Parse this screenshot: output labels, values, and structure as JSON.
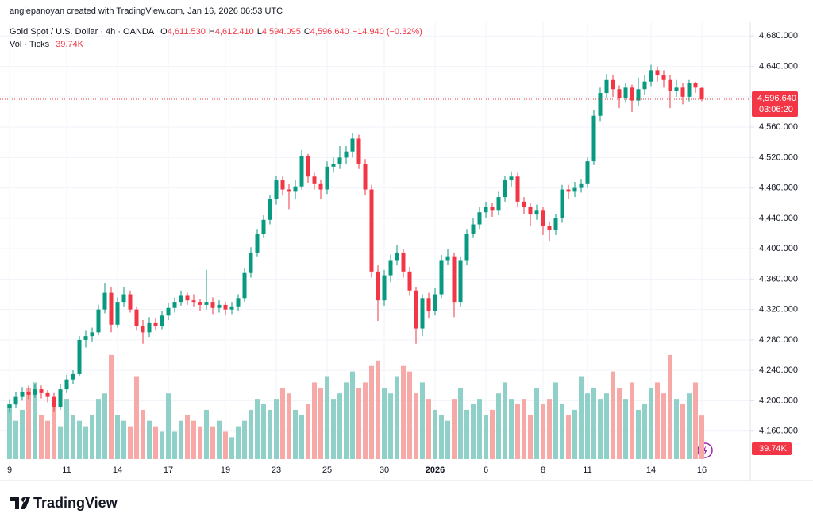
{
  "chart_data": {
    "type": "candlestick",
    "header": "angiepanoyan created with TradingView.com, Jan 16, 2026 06:53 UTC",
    "title": "Gold Spot / U.S. Dollar · 4h · OANDA",
    "ohlc_legend": [
      {
        "key": "O",
        "value": "4,611.530"
      },
      {
        "key": "H",
        "value": "4,612.410"
      },
      {
        "key": "L",
        "value": "4,594.095"
      },
      {
        "key": "C",
        "value": "4,596.640"
      }
    ],
    "change": "−14.940 (−0.32%)",
    "categories": [
      "9",
      null,
      null,
      null,
      null,
      null,
      null,
      null,
      null,
      "11",
      null,
      null,
      null,
      null,
      null,
      null,
      null,
      "14",
      null,
      null,
      null,
      null,
      null,
      null,
      null,
      "17",
      null,
      null,
      null,
      null,
      null,
      null,
      null,
      null,
      "19",
      null,
      null,
      null,
      null,
      null,
      null,
      null,
      "23",
      null,
      null,
      null,
      null,
      null,
      null,
      null,
      "25",
      null,
      null,
      null,
      null,
      null,
      null,
      null,
      null,
      "30",
      null,
      null,
      null,
      null,
      null,
      null,
      null,
      "2026",
      null,
      null,
      null,
      null,
      null,
      null,
      null,
      "6",
      null,
      null,
      null,
      null,
      null,
      null,
      null,
      null,
      "8",
      null,
      null,
      null,
      null,
      null,
      null,
      "11",
      null,
      null,
      null,
      null,
      null,
      null,
      null,
      null,
      null,
      "14",
      null,
      null,
      null,
      null,
      null,
      null,
      null,
      "16"
    ],
    "open": [
      4190,
      4195,
      4205,
      4212,
      4208,
      4215,
      4210,
      4205,
      4192,
      4215,
      4228,
      4235,
      4280,
      4285,
      4290,
      4320,
      4342,
      4300,
      4330,
      4340,
      4320,
      4298,
      4290,
      4302,
      4298,
      4312,
      4322,
      4330,
      4338,
      4332,
      4330,
      4326,
      4330,
      4322,
      4326,
      4320,
      4324,
      4335,
      4368,
      4395,
      4420,
      4438,
      4465,
      4490,
      4478,
      4475,
      4482,
      4522,
      4495,
      4485,
      4478,
      4508,
      4512,
      4520,
      4528,
      4545,
      4512,
      4478,
      4370,
      4332,
      4365,
      4385,
      4395,
      4370,
      4345,
      4295,
      4335,
      4318,
      4340,
      4385,
      4390,
      4330,
      4385,
      4420,
      4432,
      4448,
      4455,
      4450,
      4468,
      4490,
      4495,
      4462,
      4455,
      4445,
      4450,
      4430,
      4425,
      4440,
      4478,
      4475,
      4480,
      4485,
      4515,
      4575,
      4605,
      4622,
      4610,
      4598,
      4612,
      4595,
      4610,
      4620,
      4635,
      4628,
      4622,
      4608,
      4612,
      4600,
      4618,
      4611.53
    ],
    "high": [
      4202,
      4212,
      4218,
      4220,
      4222,
      4220,
      4214,
      4210,
      4222,
      4234,
      4240,
      4285,
      4292,
      4296,
      4326,
      4355,
      4350,
      4336,
      4350,
      4345,
      4324,
      4306,
      4310,
      4308,
      4318,
      4328,
      4336,
      4345,
      4342,
      4340,
      4334,
      4372,
      4336,
      4332,
      4330,
      4330,
      4340,
      4374,
      4402,
      4426,
      4444,
      4470,
      4496,
      4495,
      4485,
      4490,
      4530,
      4525,
      4500,
      4490,
      4515,
      4520,
      4535,
      4535,
      4552,
      4550,
      4518,
      4484,
      4378,
      4372,
      4392,
      4405,
      4400,
      4376,
      4350,
      4340,
      4342,
      4348,
      4392,
      4400,
      4395,
      4390,
      4426,
      4440,
      4455,
      4462,
      4460,
      4475,
      4496,
      4502,
      4500,
      4468,
      4460,
      4458,
      4455,
      4436,
      4446,
      4484,
      4484,
      4488,
      4492,
      4520,
      4582,
      4612,
      4630,
      4628,
      4615,
      4618,
      4616,
      4625,
      4628,
      4642,
      4640,
      4635,
      4628,
      4622,
      4618,
      4622,
      4620,
      4612.41
    ],
    "low": [
      4184,
      4190,
      4200,
      4202,
      4204,
      4203,
      4198,
      4185,
      4188,
      4210,
      4222,
      4232,
      4270,
      4278,
      4286,
      4315,
      4290,
      4296,
      4324,
      4316,
      4292,
      4275,
      4284,
      4292,
      4294,
      4306,
      4316,
      4325,
      4326,
      4324,
      4318,
      4320,
      4314,
      4316,
      4312,
      4314,
      4318,
      4330,
      4362,
      4390,
      4414,
      4432,
      4458,
      4470,
      4452,
      4466,
      4478,
      4486,
      4478,
      4465,
      4472,
      4500,
      4505,
      4512,
      4520,
      4505,
      4470,
      4362,
      4305,
      4325,
      4356,
      4378,
      4362,
      4338,
      4275,
      4285,
      4308,
      4312,
      4335,
      4378,
      4310,
      4324,
      4378,
      4414,
      4426,
      4440,
      4442,
      4444,
      4462,
      4482,
      4455,
      4446,
      4430,
      4438,
      4418,
      4410,
      4418,
      4434,
      4465,
      4468,
      4474,
      4480,
      4510,
      4568,
      4598,
      4600,
      4585,
      4592,
      4580,
      4588,
      4602,
      4614,
      4620,
      4612,
      4585,
      4600,
      4590,
      4594,
      4605,
      4594.095
    ],
    "close": [
      4195,
      4205,
      4212,
      4208,
      4215,
      4210,
      4205,
      4192,
      4215,
      4228,
      4235,
      4280,
      4285,
      4290,
      4320,
      4342,
      4300,
      4330,
      4340,
      4320,
      4298,
      4290,
      4302,
      4298,
      4312,
      4322,
      4330,
      4338,
      4332,
      4330,
      4326,
      4330,
      4322,
      4326,
      4320,
      4324,
      4335,
      4368,
      4395,
      4420,
      4438,
      4465,
      4490,
      4478,
      4475,
      4482,
      4522,
      4495,
      4485,
      4478,
      4508,
      4512,
      4520,
      4528,
      4545,
      4512,
      4478,
      4370,
      4332,
      4365,
      4385,
      4395,
      4370,
      4345,
      4295,
      4335,
      4318,
      4340,
      4385,
      4390,
      4330,
      4385,
      4420,
      4432,
      4448,
      4455,
      4450,
      4468,
      4490,
      4495,
      4462,
      4455,
      4445,
      4450,
      4430,
      4425,
      4440,
      4478,
      4475,
      4480,
      4485,
      4515,
      4575,
      4605,
      4622,
      4610,
      4598,
      4612,
      4595,
      4610,
      4620,
      4635,
      4628,
      4622,
      4608,
      4612,
      4600,
      4618,
      4612,
      4596.64
    ],
    "up_color": "#089981",
    "down_color": "#f23645",
    "volume": {
      "name": "Vol · Ticks",
      "last_label": "39.74K",
      "ylim": [
        0,
        100
      ],
      "up_color": "#8fd1c8",
      "down_color": "#f7a9a7",
      "values": [
        50,
        35,
        45,
        65,
        70,
        40,
        35,
        50,
        30,
        55,
        40,
        35,
        30,
        40,
        55,
        60,
        95,
        40,
        35,
        30,
        75,
        45,
        35,
        30,
        25,
        60,
        25,
        35,
        40,
        35,
        30,
        45,
        30,
        35,
        25,
        20,
        30,
        35,
        45,
        55,
        50,
        45,
        55,
        65,
        60,
        45,
        40,
        50,
        70,
        65,
        75,
        55,
        60,
        70,
        80,
        65,
        70,
        85,
        90,
        65,
        60,
        75,
        85,
        80,
        60,
        70,
        55,
        45,
        40,
        35,
        55,
        65,
        45,
        50,
        55,
        40,
        45,
        60,
        70,
        55,
        50,
        55,
        40,
        65,
        50,
        55,
        70,
        50,
        40,
        45,
        75,
        60,
        65,
        55,
        60,
        80,
        65,
        55,
        70,
        45,
        50,
        65,
        70,
        60,
        95,
        55,
        50,
        60,
        70,
        39.74
      ]
    },
    "ylim": [
      4121,
      4696
    ],
    "yticks": [
      {
        "value": 4160,
        "label": "4,160.000"
      },
      {
        "value": 4200,
        "label": "4,200.000"
      },
      {
        "value": 4240,
        "label": "4,240.000"
      },
      {
        "value": 4280,
        "label": "4,280.000"
      },
      {
        "value": 4320,
        "label": "4,320.000"
      },
      {
        "value": 4360,
        "label": "4,360.000"
      },
      {
        "value": 4400,
        "label": "4,400.000"
      },
      {
        "value": 4440,
        "label": "4,440.000"
      },
      {
        "value": 4480,
        "label": "4,480.000"
      },
      {
        "value": 4520,
        "label": "4,520.000"
      },
      {
        "value": 4560,
        "label": "4,560.000"
      },
      {
        "value": 4600,
        "label": "4,600.000"
      },
      {
        "value": 4640,
        "label": "4,640.000"
      },
      {
        "value": 4680,
        "label": "4,680.000"
      }
    ],
    "last_price_label": "4,596.640",
    "countdown": "03:06:20",
    "grid": true
  },
  "footer": {
    "logo": "TradingView"
  }
}
